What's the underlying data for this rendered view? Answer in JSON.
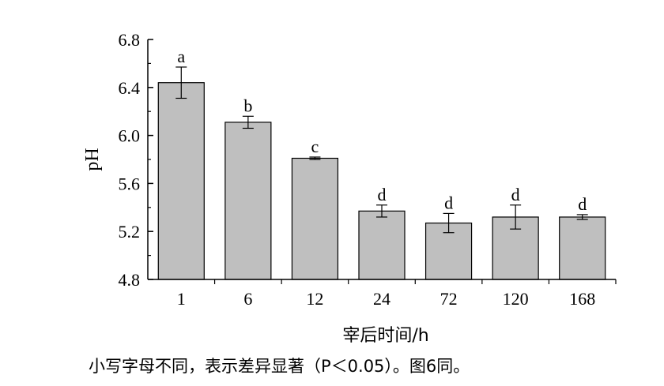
{
  "chart_data": {
    "type": "bar",
    "categories": [
      "1",
      "6",
      "12",
      "24",
      "72",
      "120",
      "168"
    ],
    "values": [
      6.44,
      6.11,
      5.81,
      5.37,
      5.27,
      5.32,
      5.32
    ],
    "errors": [
      0.13,
      0.05,
      0.01,
      0.05,
      0.08,
      0.1,
      0.02
    ],
    "significance": [
      "a",
      "b",
      "c",
      "d",
      "d",
      "d",
      "d"
    ],
    "xlabel": "宰后时间/h",
    "ylabel": "pH",
    "ylim": [
      4.8,
      6.8
    ],
    "yticks": [
      "4.8",
      "5.2",
      "5.6",
      "6.0",
      "6.4",
      "6.8"
    ],
    "bar_color": "#bfbfbf",
    "grid": false
  },
  "note": "小写字母不同，表示差异显著（P＜0.05）。图6同。"
}
